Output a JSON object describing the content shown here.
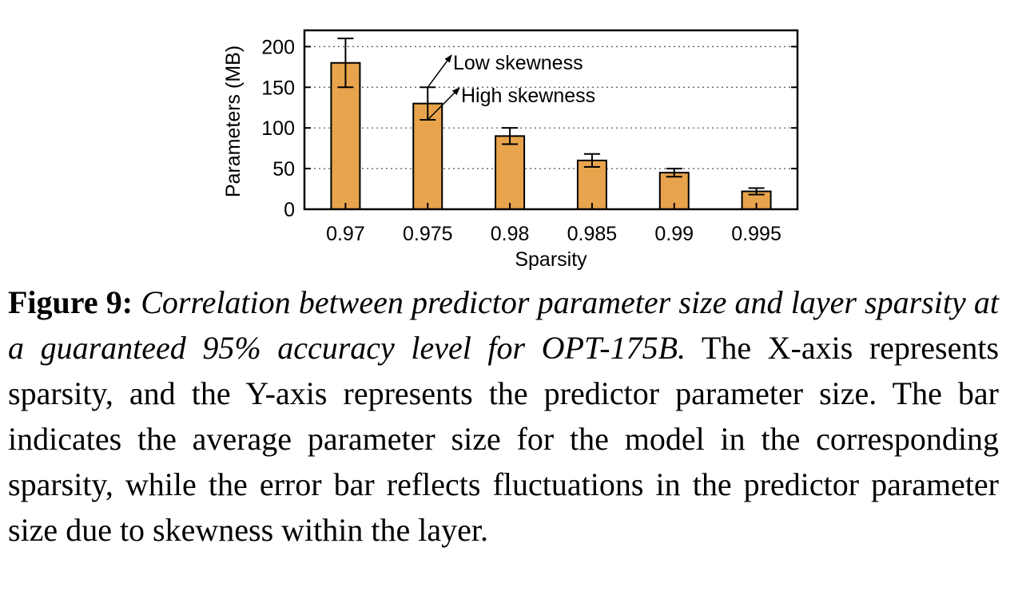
{
  "chart_data": {
    "type": "bar",
    "categories": [
      "0.97",
      "0.975",
      "0.98",
      "0.985",
      "0.99",
      "0.995"
    ],
    "values": [
      180,
      130,
      90,
      60,
      45,
      22
    ],
    "error_low": [
      150,
      110,
      80,
      52,
      40,
      18
    ],
    "error_high": [
      210,
      150,
      100,
      68,
      50,
      26
    ],
    "xlabel": "Sparsity",
    "ylabel": "Parameters (MB)",
    "ylim": [
      0,
      220
    ],
    "yticks": [
      0,
      50,
      100,
      150,
      200
    ],
    "grid": true,
    "bar_color": "#E8A44C",
    "annotations": [
      {
        "text": "Low skewness",
        "category": "0.975",
        "points_to": "error_high"
      },
      {
        "text": "High skewness",
        "category": "0.975",
        "points_to": "error_low"
      }
    ]
  },
  "caption": {
    "label": "Figure 9:",
    "italic": "Correlation between predictor parameter size and layer sparsity at a guaranteed 95% accuracy level for OPT-175B.",
    "body": "The X-axis represents sparsity, and the Y-axis represents the predictor parameter size. The bar indicates the average parameter size for the model in the corresponding sparsity, while the error bar reflects fluctuations in the predictor parameter size due to skewness within the layer."
  }
}
